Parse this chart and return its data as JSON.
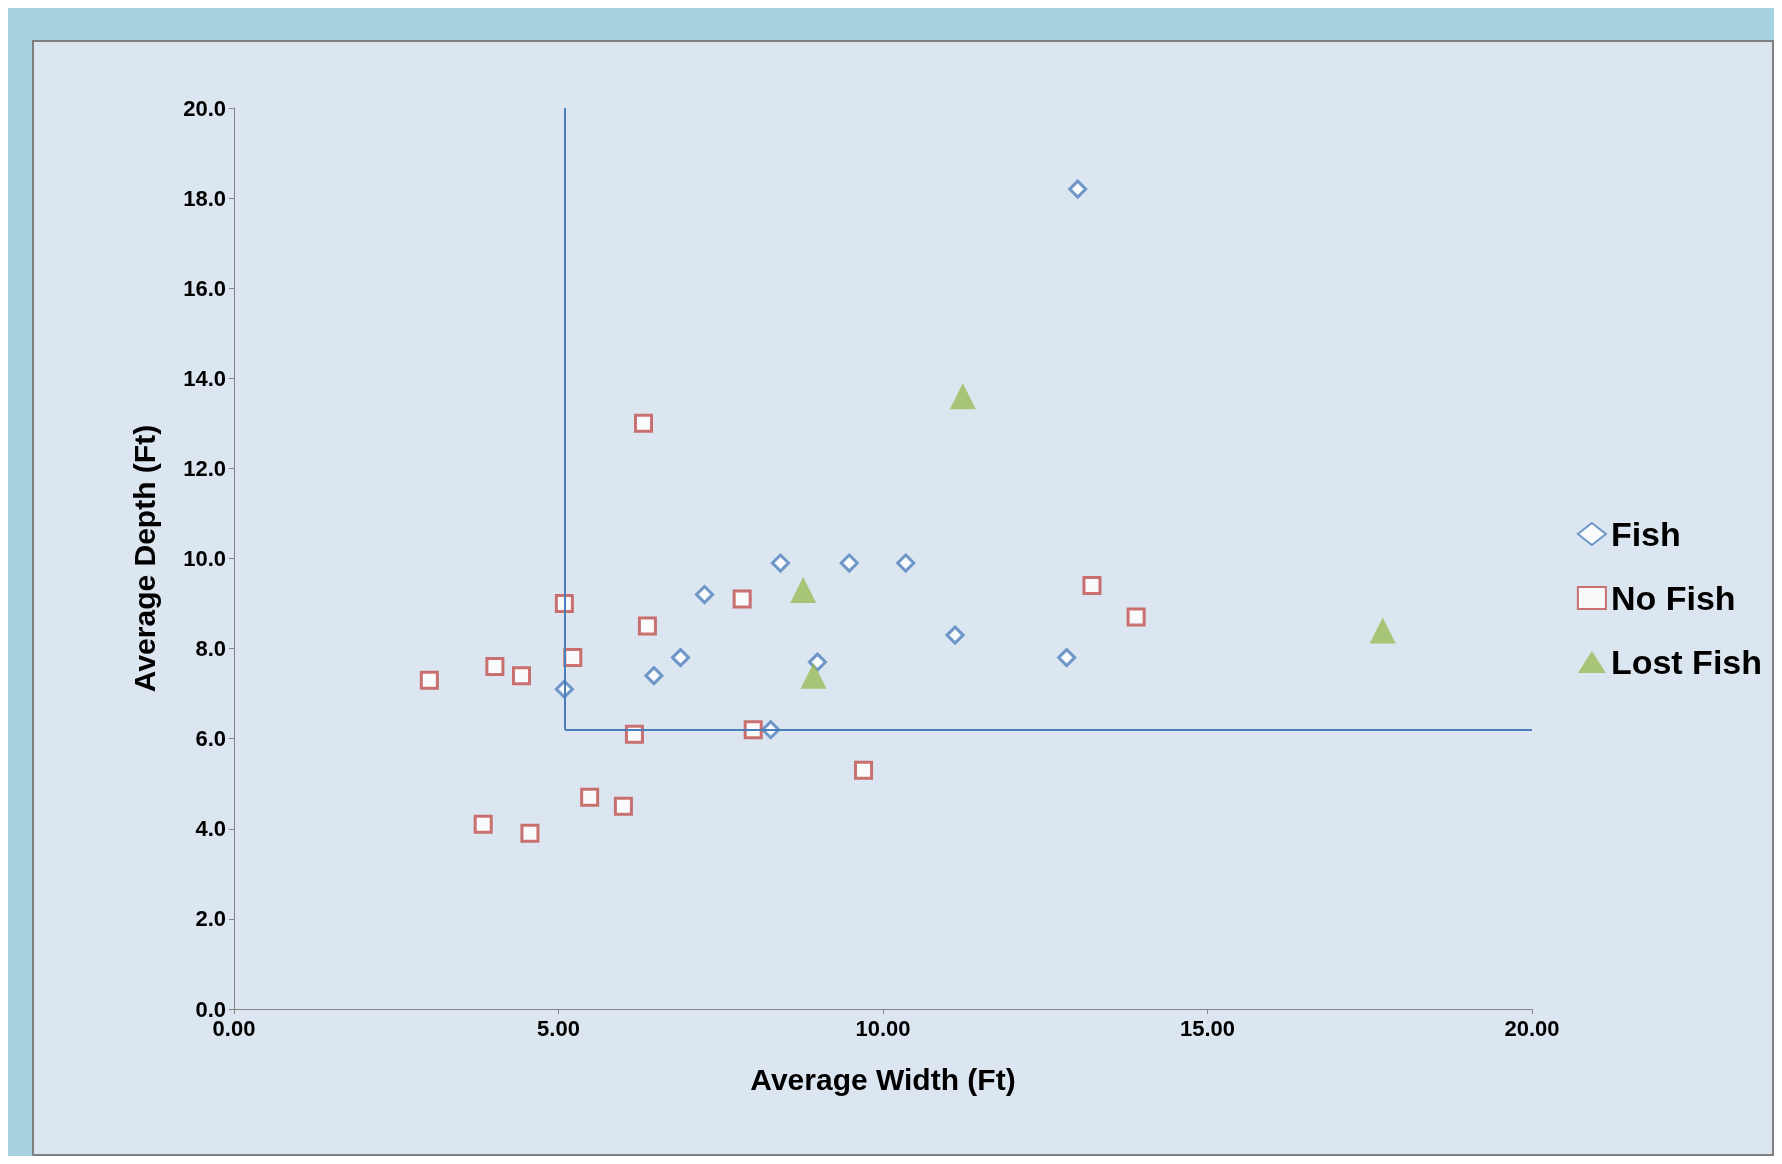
{
  "chart_data": {
    "type": "scatter",
    "xlabel": "Average Width (Ft)",
    "ylabel": "Average Depth (Ft)",
    "xlim": [
      0,
      20
    ],
    "ylim": [
      0,
      20
    ],
    "xticks": [
      {
        "value": 0,
        "label": "0.00"
      },
      {
        "value": 5,
        "label": "5.00"
      },
      {
        "value": 10,
        "label": "10.00"
      },
      {
        "value": 15,
        "label": "15.00"
      },
      {
        "value": 20,
        "label": "20.00"
      }
    ],
    "yticks": [
      {
        "value": 0,
        "label": "0.0"
      },
      {
        "value": 2,
        "label": "2.0"
      },
      {
        "value": 4,
        "label": "4.0"
      },
      {
        "value": 6,
        "label": "6.0"
      },
      {
        "value": 8,
        "label": "8.0"
      },
      {
        "value": 10,
        "label": "10.0"
      },
      {
        "value": 12,
        "label": "12.0"
      },
      {
        "value": 14,
        "label": "14.0"
      },
      {
        "value": 16,
        "label": "16.0"
      },
      {
        "value": 18,
        "label": "18.0"
      },
      {
        "value": 20,
        "label": "20.0"
      }
    ],
    "grid": false,
    "legend": "right",
    "series": [
      {
        "name": "Fish",
        "color": "#4f81bd",
        "marker": "diamond",
        "x": [
          13.0,
          8.42,
          9.48,
          10.35,
          7.25,
          11.11,
          12.83,
          8.99,
          6.88,
          6.47,
          5.09,
          8.27
        ],
        "values": [
          18.2,
          9.9,
          9.9,
          9.9,
          9.2,
          8.3,
          7.8,
          7.7,
          7.8,
          7.4,
          7.1,
          6.2
        ]
      },
      {
        "name": "No Fish",
        "color": "#c0504d",
        "marker": "square",
        "x": [
          6.31,
          5.09,
          7.83,
          13.22,
          13.9,
          6.37,
          5.22,
          3.01,
          4.02,
          4.43,
          6.17,
          8.0,
          9.7,
          5.48,
          6.0,
          3.84,
          4.56
        ],
        "values": [
          13.0,
          9.0,
          9.1,
          9.4,
          8.7,
          8.5,
          7.8,
          7.3,
          7.6,
          7.4,
          6.1,
          6.2,
          5.3,
          4.7,
          4.5,
          4.1,
          3.9
        ]
      },
      {
        "name": "Lost Fish",
        "color": "#9bbb59",
        "marker": "triangle",
        "x": [
          11.23,
          8.77,
          8.93,
          17.7
        ],
        "values": [
          13.6,
          9.3,
          7.4,
          8.4
        ]
      }
    ],
    "ref_lines": [
      {
        "axis": "x",
        "value": 5.1,
        "color": "#4a7ebb"
      },
      {
        "axis": "y",
        "value": 6.2,
        "color": "#4a7ebb"
      }
    ]
  }
}
